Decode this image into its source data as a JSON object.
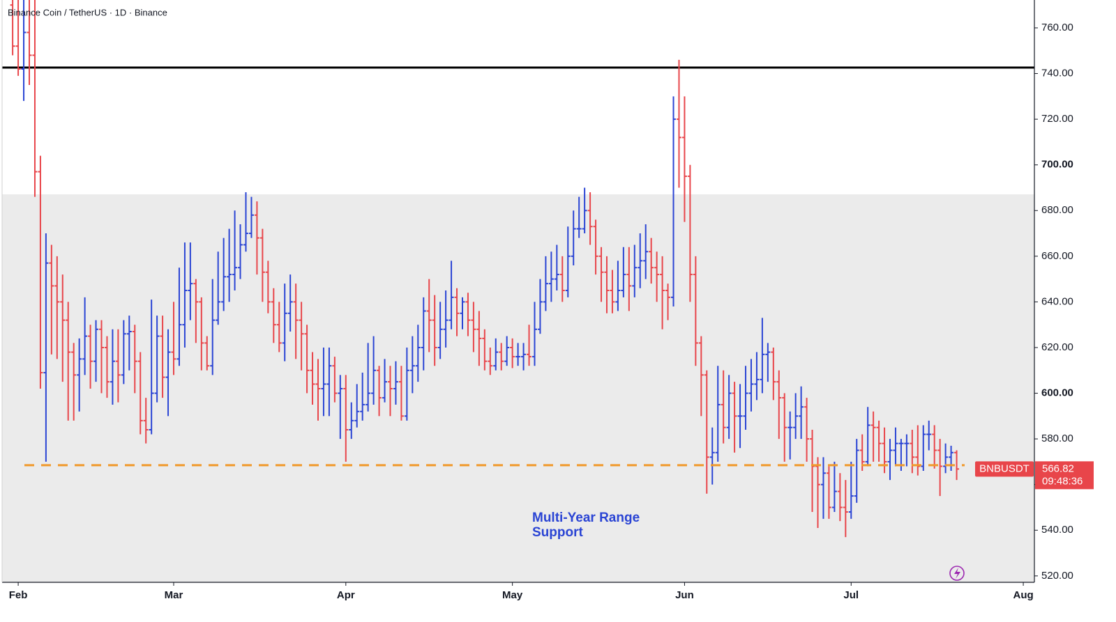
{
  "chart_data": {
    "type": "ohlc",
    "title": "Binance Coin / TetherUS · 1D · Binance",
    "symbol_label": "BNBUSDT",
    "countdown": "09:48:36",
    "annotation": [
      "Multi-Year Range",
      "Support"
    ],
    "up_color": "#2a44d4",
    "down_color": "#e8454a",
    "resistance_line": 742.6,
    "support_line": 568.5,
    "shaded_range": [
      517.2,
      687.1
    ],
    "xlim": [
      -2.9,
      183
    ],
    "ylim": [
      517.2,
      772.2
    ],
    "xticks": [
      {
        "value": 0,
        "label": "Feb"
      },
      {
        "value": 28,
        "label": "Mar"
      },
      {
        "value": 59,
        "label": "Apr"
      },
      {
        "value": 89,
        "label": "May"
      },
      {
        "value": 120,
        "label": "Jun"
      },
      {
        "value": 150,
        "label": "Jul"
      },
      {
        "value": 181,
        "label": "Aug"
      }
    ],
    "yticks": [
      {
        "value": 520,
        "label": "520.00"
      },
      {
        "value": 540,
        "label": "540.00"
      },
      {
        "value": 560,
        "label": "560.00"
      },
      {
        "value": 580,
        "label": "580.00"
      },
      {
        "value": 600,
        "label": "600.00"
      },
      {
        "value": 620,
        "label": "620.00"
      },
      {
        "value": 640,
        "label": "640.00"
      },
      {
        "value": 660,
        "label": "660.00"
      },
      {
        "value": 680,
        "label": "680.00"
      },
      {
        "value": 700,
        "label": "700.00"
      },
      {
        "value": 720,
        "label": "720.00"
      },
      {
        "value": 740,
        "label": "740.00"
      },
      {
        "value": 760,
        "label": "760.00"
      }
    ],
    "x": [
      -1,
      0,
      1,
      2,
      3,
      4,
      5,
      6,
      7,
      8,
      9,
      10,
      11,
      12,
      13,
      14,
      15,
      16,
      17,
      18,
      19,
      20,
      21,
      22,
      23,
      24,
      25,
      26,
      27,
      28,
      29,
      30,
      31,
      32,
      33,
      34,
      35,
      36,
      37,
      38,
      39,
      40,
      41,
      42,
      43,
      44,
      45,
      46,
      47,
      48,
      49,
      50,
      51,
      52,
      53,
      54,
      55,
      56,
      57,
      58,
      59,
      60,
      61,
      62,
      63,
      64,
      65,
      66,
      67,
      68,
      69,
      70,
      71,
      72,
      73,
      74,
      75,
      76,
      77,
      78,
      79,
      80,
      81,
      82,
      83,
      84,
      85,
      86,
      87,
      88,
      89,
      90,
      91,
      92,
      93,
      94,
      95,
      96,
      97,
      98,
      99,
      100,
      101,
      102,
      103,
      104,
      105,
      106,
      107,
      108,
      109,
      110,
      111,
      112,
      113,
      114,
      115,
      116,
      117,
      118,
      119,
      120,
      121,
      122,
      123,
      124,
      125,
      126,
      127,
      128,
      129,
      130,
      131,
      132,
      133,
      134,
      135,
      136,
      137,
      138,
      139,
      140,
      141,
      142,
      143,
      144,
      145,
      146,
      147,
      148,
      149,
      150,
      151,
      152,
      153,
      154,
      155,
      156,
      157,
      158,
      159,
      160,
      161,
      162,
      163,
      164,
      165,
      166,
      167,
      168,
      169
    ],
    "open": [
      770,
      752,
      742,
      758,
      748,
      697,
      609,
      657,
      647,
      640,
      632,
      618,
      608,
      615,
      625,
      614,
      628,
      620,
      605,
      614,
      608,
      626,
      627,
      614,
      588,
      584,
      600,
      625,
      607,
      618,
      615,
      630,
      645,
      648,
      640,
      622,
      612,
      632,
      640,
      651,
      652,
      655,
      665,
      670,
      678,
      668,
      653,
      640,
      630,
      622,
      635,
      640,
      632,
      626,
      610,
      604,
      602,
      604,
      612,
      600,
      602,
      584,
      588,
      592,
      595,
      600,
      610,
      598,
      605,
      602,
      605,
      590,
      610,
      612,
      620,
      636,
      632,
      620,
      628,
      632,
      642,
      635,
      640,
      632,
      628,
      624,
      614,
      612,
      618,
      614,
      620,
      616,
      616,
      617,
      616,
      628,
      640,
      648,
      650,
      652,
      645,
      660,
      672,
      672,
      680,
      673,
      660,
      653,
      645,
      640,
      645,
      652,
      647,
      655,
      658,
      662,
      655,
      652,
      645,
      642,
      720,
      712,
      695,
      652,
      622,
      608,
      572,
      574,
      595,
      585,
      600,
      590,
      590,
      600,
      604,
      606,
      617,
      618,
      605,
      598,
      585,
      585,
      590,
      594,
      580,
      568,
      560,
      565,
      550,
      557,
      550,
      548,
      555,
      575,
      570,
      586,
      585,
      578,
      570,
      575,
      578,
      578,
      578,
      572,
      568,
      582,
      582,
      575,
      568,
      572,
      574
    ],
    "high": [
      775,
      775,
      775,
      775,
      775,
      704,
      670,
      665,
      660,
      652,
      640,
      622,
      624,
      642,
      630,
      632,
      632,
      625,
      628,
      628,
      632,
      634,
      630,
      618,
      598,
      641,
      634,
      634,
      628,
      640,
      655,
      666,
      666,
      650,
      642,
      625,
      650,
      662,
      668,
      672,
      680,
      674,
      688,
      686,
      684,
      672,
      658,
      646,
      640,
      648,
      652,
      648,
      640,
      630,
      618,
      615,
      620,
      620,
      616,
      608,
      608,
      596,
      604,
      609,
      622,
      625,
      612,
      615,
      612,
      614,
      612,
      620,
      625,
      630,
      642,
      650,
      643,
      640,
      645,
      658,
      646,
      642,
      644,
      640,
      636,
      628,
      620,
      624,
      622,
      625,
      624,
      622,
      622,
      630,
      640,
      650,
      660,
      662,
      665,
      660,
      673,
      680,
      686,
      690,
      688,
      676,
      664,
      660,
      654,
      658,
      664,
      664,
      665,
      670,
      674,
      668,
      662,
      660,
      648,
      730,
      746,
      730,
      700,
      660,
      625,
      610,
      585,
      612,
      610,
      608,
      605,
      604,
      612,
      615,
      618,
      633,
      622,
      620,
      610,
      600,
      592,
      600,
      603,
      598,
      584,
      572,
      572,
      568,
      570,
      565,
      562,
      570,
      580,
      582,
      594,
      592,
      588,
      585,
      580,
      585,
      580,
      582,
      584,
      586,
      586,
      588,
      586,
      580,
      578,
      577,
      575
    ],
    "low": [
      748,
      739,
      728,
      735,
      686,
      602,
      570,
      617,
      615,
      605,
      588,
      588,
      592,
      608,
      602,
      605,
      600,
      598,
      595,
      596,
      604,
      610,
      600,
      582,
      578,
      582,
      596,
      598,
      590,
      608,
      612,
      620,
      632,
      622,
      610,
      610,
      608,
      630,
      636,
      640,
      645,
      650,
      662,
      668,
      652,
      640,
      635,
      622,
      618,
      614,
      627,
      615,
      610,
      600,
      595,
      588,
      590,
      590,
      596,
      580,
      570,
      580,
      585,
      588,
      592,
      595,
      590,
      596,
      590,
      595,
      588,
      588,
      600,
      605,
      610,
      618,
      612,
      615,
      620,
      628,
      625,
      628,
      625,
      618,
      612,
      610,
      608,
      610,
      610,
      612,
      611,
      612,
      610,
      612,
      612,
      626,
      636,
      640,
      645,
      640,
      642,
      656,
      668,
      670,
      665,
      652,
      640,
      635,
      635,
      636,
      642,
      636,
      642,
      646,
      650,
      648,
      640,
      628,
      632,
      638,
      690,
      675,
      640,
      612,
      590,
      556,
      560,
      570,
      578,
      580,
      574,
      576,
      584,
      592,
      597,
      600,
      605,
      597,
      580,
      570,
      571,
      580,
      580,
      570,
      548,
      541,
      545,
      545,
      548,
      544,
      537,
      545,
      552,
      566,
      568,
      570,
      570,
      565,
      562,
      568,
      566,
      568,
      565,
      564,
      566,
      575,
      567,
      555,
      565,
      566,
      562
    ],
    "close": [
      752,
      742,
      758,
      748,
      697,
      609,
      657,
      647,
      640,
      632,
      618,
      608,
      615,
      625,
      614,
      628,
      620,
      605,
      614,
      608,
      626,
      627,
      614,
      588,
      584,
      600,
      625,
      607,
      618,
      615,
      630,
      645,
      648,
      640,
      622,
      612,
      632,
      640,
      651,
      652,
      655,
      665,
      670,
      678,
      668,
      653,
      640,
      630,
      622,
      635,
      640,
      632,
      626,
      610,
      604,
      602,
      604,
      612,
      600,
      602,
      584,
      588,
      592,
      595,
      600,
      610,
      598,
      605,
      602,
      605,
      590,
      610,
      612,
      620,
      636,
      632,
      620,
      628,
      632,
      642,
      635,
      640,
      632,
      628,
      624,
      614,
      612,
      618,
      614,
      620,
      616,
      616,
      617,
      616,
      628,
      640,
      648,
      650,
      652,
      645,
      660,
      672,
      672,
      680,
      673,
      660,
      653,
      645,
      640,
      645,
      652,
      647,
      655,
      658,
      662,
      655,
      652,
      645,
      642,
      720,
      712,
      695,
      652,
      622,
      608,
      572,
      574,
      595,
      585,
      600,
      590,
      590,
      600,
      604,
      606,
      617,
      618,
      605,
      598,
      585,
      585,
      590,
      594,
      580,
      568,
      560,
      565,
      550,
      557,
      550,
      548,
      555,
      575,
      570,
      586,
      585,
      578,
      570,
      575,
      578,
      578,
      578,
      572,
      568,
      582,
      582,
      575,
      568,
      572,
      574,
      566.82
    ]
  }
}
